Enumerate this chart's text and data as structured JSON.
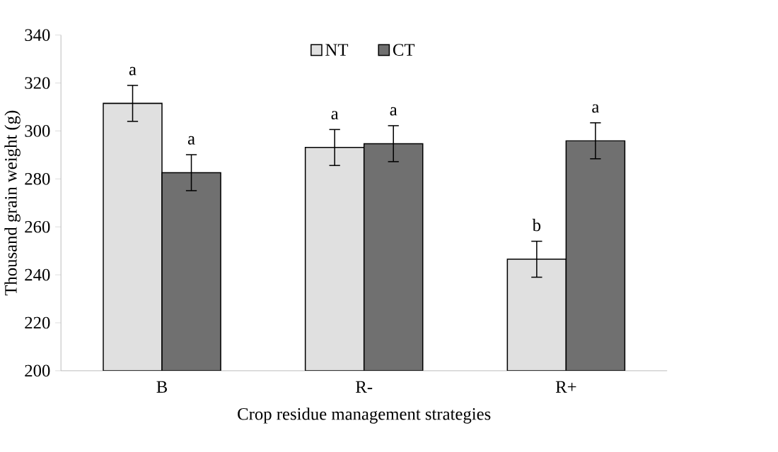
{
  "chart_data": {
    "type": "bar",
    "xlabel": "Crop residue management strategies",
    "ylabel": "Thousand grain weight (g)",
    "categories": [
      "B",
      "R-",
      "R+"
    ],
    "series": [
      {
        "name": "NT",
        "color": "#e0e0e0",
        "values": [
          311.5,
          293.1,
          246.5
        ],
        "errors": [
          7.5,
          7.5,
          7.5
        ],
        "value_labels": [
          "a",
          "a",
          "b"
        ]
      },
      {
        "name": "CT",
        "color": "#707070",
        "values": [
          282.6,
          294.7,
          295.9
        ],
        "errors": [
          7.5,
          7.5,
          7.5
        ],
        "value_labels": [
          "a",
          "a",
          "a"
        ]
      }
    ],
    "ylim": [
      200,
      340
    ],
    "yticks": [
      200,
      220,
      240,
      260,
      280,
      300,
      320,
      340
    ],
    "grid": false,
    "legend": "top"
  }
}
